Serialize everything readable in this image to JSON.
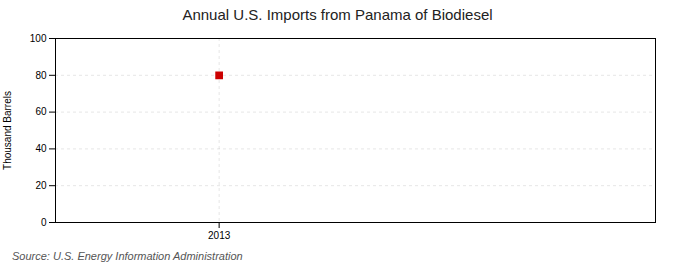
{
  "chart_data": {
    "type": "scatter",
    "title": "Annual U.S. Imports from Panama of Biodiesel",
    "ylabel": "Thousand Barrels",
    "caption": "Source: U.S. Energy Information Administration",
    "x": [
      2013
    ],
    "values": [
      80
    ],
    "color": "#cc0000",
    "marker": "square",
    "xlim": [
      2012.4,
      2014.6
    ],
    "xticks": [
      2013
    ],
    "ylim": [
      0,
      100
    ],
    "yticks": [
      0,
      20,
      40,
      60,
      80,
      100
    ],
    "grid": true
  }
}
